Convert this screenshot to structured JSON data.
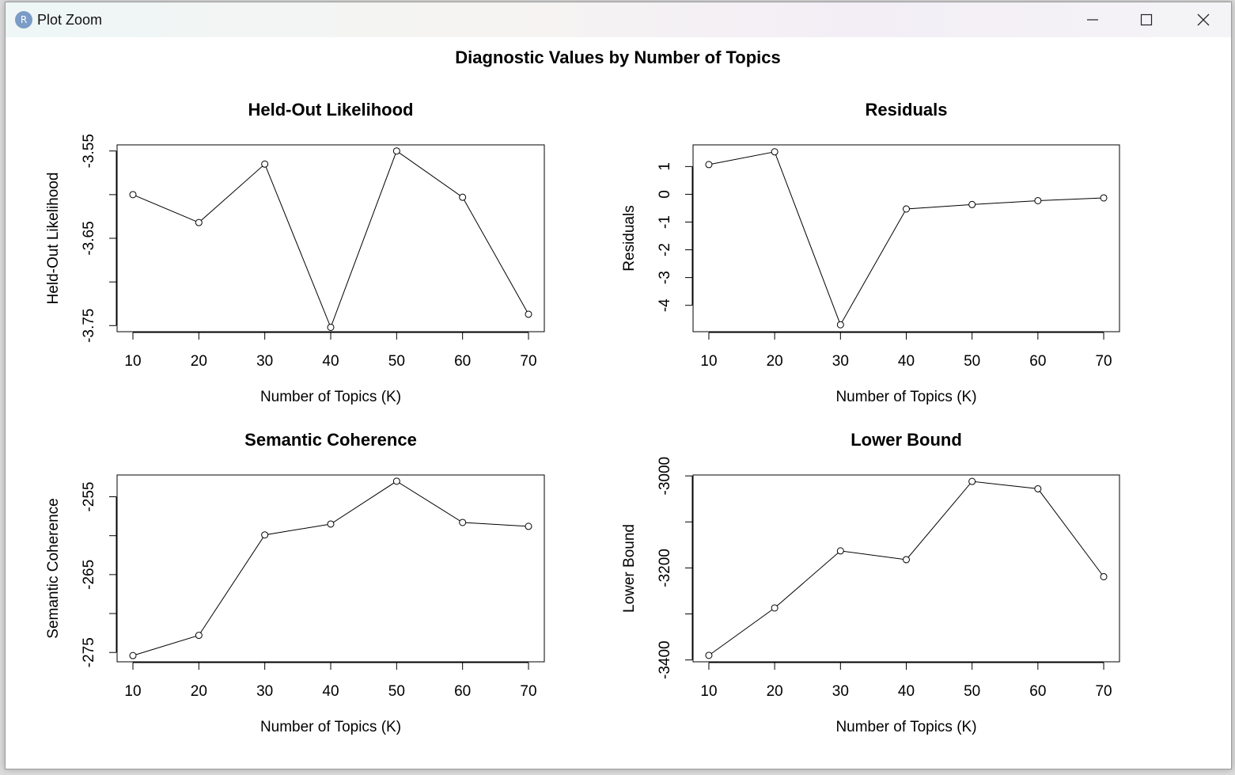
{
  "window": {
    "title": "Plot Zoom",
    "app_icon_letter": "R"
  },
  "chart_data": {
    "main_title": "Diagnostic Values by Number of Topics",
    "panels": [
      {
        "type": "line",
        "title": "Held-Out Likelihood",
        "xlabel": "Number of Topics (K)",
        "ylabel": "Held-Out Likelihood",
        "x": [
          10,
          20,
          30,
          40,
          50,
          60,
          70
        ],
        "y": [
          -3.6,
          -3.632,
          -3.565,
          -3.752,
          -3.55,
          -3.603,
          -3.737
        ],
        "xlim": [
          7.6,
          72.4
        ],
        "ylim": [
          -3.757,
          -3.543
        ],
        "xticks": [
          10,
          20,
          30,
          40,
          50,
          60,
          70
        ],
        "yticks": [
          -3.55,
          -3.6,
          -3.65,
          -3.7,
          -3.75
        ],
        "ytick_labels": [
          "-3.55",
          "",
          "-3.65",
          "",
          "-3.75"
        ]
      },
      {
        "type": "line",
        "title": "Residuals",
        "xlabel": "Number of Topics (K)",
        "ylabel": "Residuals",
        "x": [
          10,
          20,
          30,
          40,
          50,
          60,
          70
        ],
        "y": [
          1.07,
          1.53,
          -4.7,
          -0.53,
          -0.37,
          -0.23,
          -0.13
        ],
        "xlim": [
          7.6,
          72.4
        ],
        "ylim": [
          -4.95,
          1.78
        ],
        "xticks": [
          10,
          20,
          30,
          40,
          50,
          60,
          70
        ],
        "yticks": [
          1,
          0,
          -1,
          -2,
          -3,
          -4
        ],
        "ytick_labels": [
          "1",
          "0",
          "-1",
          "-2",
          "-3",
          "-4"
        ]
      },
      {
        "type": "line",
        "title": "Semantic Coherence",
        "xlabel": "Number of Topics (K)",
        "ylabel": "Semantic Coherence",
        "x": [
          10,
          20,
          30,
          40,
          50,
          60,
          70
        ],
        "y": [
          -275.4,
          -272.8,
          -259.9,
          -258.5,
          -253.0,
          -258.3,
          -258.8
        ],
        "xlim": [
          7.6,
          72.4
        ],
        "ylim": [
          -276.2,
          -252.2
        ],
        "xticks": [
          10,
          20,
          30,
          40,
          50,
          60,
          70
        ],
        "yticks": [
          -255,
          -260,
          -265,
          -270,
          -275
        ],
        "ytick_labels": [
          "-255",
          "",
          "-265",
          "",
          "-275"
        ]
      },
      {
        "type": "line",
        "title": "Lower Bound",
        "xlabel": "Number of Topics (K)",
        "ylabel": "Lower Bound",
        "x": [
          10,
          20,
          30,
          40,
          50,
          60,
          70
        ],
        "y": [
          -3390,
          -3287,
          -3163,
          -3182,
          -3012,
          -3028,
          -3219
        ],
        "xlim": [
          7.6,
          72.4
        ],
        "ylim": [
          -3404,
          -2998
        ],
        "xticks": [
          10,
          20,
          30,
          40,
          50,
          60,
          70
        ],
        "yticks": [
          -3000,
          -3100,
          -3200,
          -3300,
          -3400
        ],
        "ytick_labels": [
          "-3000",
          "",
          "-3200",
          "",
          "-3400"
        ]
      }
    ]
  }
}
